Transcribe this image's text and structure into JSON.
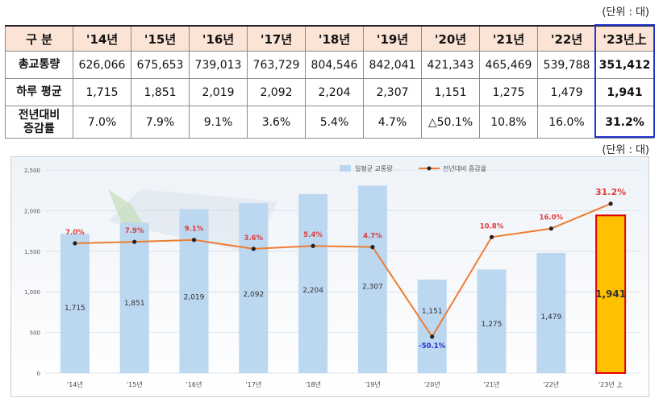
{
  "units": {
    "table": "(단위 : 대)",
    "chart": "(단위 : 대)"
  },
  "table": {
    "header": [
      "구 분",
      "'14년",
      "'15년",
      "'16년",
      "'17년",
      "'18년",
      "'19년",
      "'20년",
      "'21년",
      "'22년",
      "'23년上"
    ],
    "rows": [
      {
        "label": "총교통량",
        "values": [
          "626,066",
          "675,653",
          "739,013",
          "763,729",
          "804,546",
          "842,041",
          "421,343",
          "465,469",
          "539,788",
          "351,412"
        ]
      },
      {
        "label": "하루 평균",
        "values": [
          "1,715",
          "1,851",
          "2,019",
          "2,092",
          "2,204",
          "2,307",
          "1,151",
          "1,275",
          "1,479",
          "1,941"
        ]
      },
      {
        "label_line1": "전년대비",
        "label_line2": "증감률",
        "values": [
          "7.0%",
          "7.9%",
          "9.1%",
          "3.6%",
          "5.4%",
          "4.7%",
          "△50.1%",
          "10.8%",
          "16.0%",
          "31.2%"
        ]
      }
    ]
  },
  "chart_data": {
    "type": "bar+line",
    "categories": [
      "'14년",
      "'15년",
      "'16년",
      "'17년",
      "'18년",
      "'19년",
      "'20년",
      "'21년",
      "'22년",
      "'23년 上"
    ],
    "series": [
      {
        "name": "일평균 교통량",
        "kind": "bar",
        "values": [
          1715,
          1851,
          2019,
          2092,
          2204,
          2307,
          1151,
          1275,
          1479,
          1941
        ],
        "labels": [
          "1,715",
          "1,851",
          "2,019",
          "2,092",
          "2,204",
          "2,307",
          "1,151",
          "1,275",
          "1,479",
          "1,941"
        ]
      },
      {
        "name": "전년대비 증감율",
        "kind": "line",
        "values": [
          7.0,
          7.9,
          9.1,
          3.6,
          5.4,
          4.7,
          -50.1,
          10.8,
          16.0,
          31.2
        ],
        "labels": [
          "7.0%",
          "7.9%",
          "9.1%",
          "3.6%",
          "5.4%",
          "4.7%",
          "-50.1%",
          "10.8%",
          "16.0%",
          "31.2%"
        ]
      }
    ],
    "y_ticks": [
      "2,500",
      "2,000",
      "1,500",
      "1,000",
      "500",
      "0"
    ],
    "ylim": [
      0,
      2500
    ],
    "line_ylim": [
      -60,
      40
    ],
    "legend_position": "top",
    "colors": {
      "bar": "#bcd7f0",
      "bar_highlight": "#ffc000",
      "bar_highlight_border": "#e00000",
      "line": "#ed7d31",
      "marker": "#222222",
      "label_red": "#e03c3c",
      "label_blue": "#2233cc"
    }
  }
}
